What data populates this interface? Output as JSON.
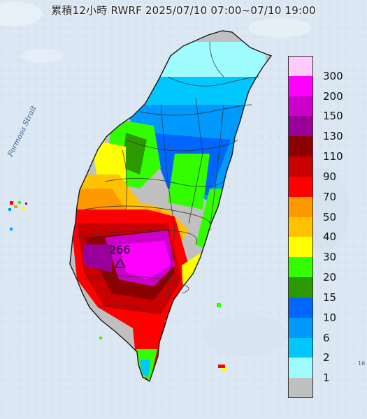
{
  "title": "累積12小時 RWRF 2025/07/10 07:00~07/10 19:00",
  "strait_label": "Formosa Strait",
  "peak": {
    "value": "266",
    "marker": "triangle-icon"
  },
  "edge_label": "16",
  "legend": {
    "labels": [
      "300",
      "200",
      "150",
      "130",
      "110",
      "90",
      "70",
      "50",
      "40",
      "30",
      "20",
      "15",
      "10",
      "6",
      "2",
      "1"
    ],
    "colors": [
      "#fecbfe",
      "#fe00fe",
      "#cb00cb",
      "#990099",
      "#8b0000",
      "#c80000",
      "#fe0000",
      "#fe9900",
      "#ffc200",
      "#fefe00",
      "#33fe00",
      "#2d9900",
      "#0066fe",
      "#0099fe",
      "#00c8fe",
      "#9ffcfe",
      "#c0c0c0"
    ]
  },
  "colors": {
    "sea": "#dbe7f2",
    "land_outline": "#1a1a1a",
    "region_borders": "#333333"
  }
}
